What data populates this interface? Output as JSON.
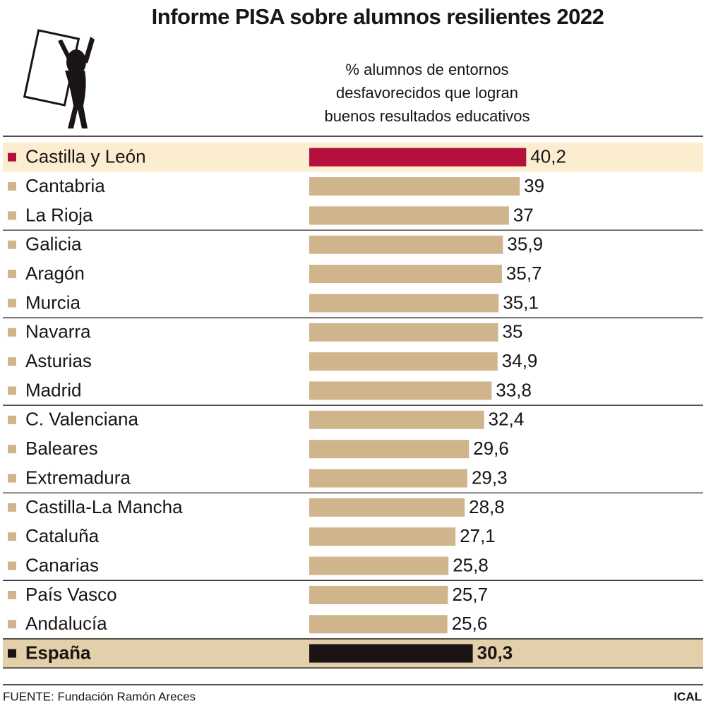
{
  "chart_data": {
    "type": "bar",
    "orientation": "horizontal",
    "title": "Informe PISA sobre alumnos resilientes 2022",
    "subtitle": [
      "% alumnos de entornos",
      "desfavorecidos que logran",
      "buenos resultados educativos"
    ],
    "categories": [
      "Castilla y León",
      "Cantabria",
      "La Rioja",
      "Galicia",
      "Aragón",
      "Murcia",
      "Navarra",
      "Asturias",
      "Madrid",
      "C. Valenciana",
      "Baleares",
      "Extremadura",
      "Castilla-La Mancha",
      "Cataluña",
      "Canarias",
      "País Vasco",
      "Andalucía",
      "España"
    ],
    "values": [
      40.2,
      39,
      37,
      35.9,
      35.7,
      35.1,
      35,
      34.9,
      33.8,
      32.4,
      29.6,
      29.3,
      28.8,
      27.1,
      25.8,
      25.7,
      25.6,
      30.3
    ],
    "value_labels": [
      "40,2",
      "39",
      "37",
      "35,9",
      "35,7",
      "35,1",
      "35",
      "34,9",
      "33,8",
      "32,4",
      "29,6",
      "29,3",
      "28,8",
      "27,1",
      "25,8",
      "25,7",
      "25,6",
      "30,3"
    ],
    "colors": [
      "#b5103c",
      "#cfb48c",
      "#cfb48c",
      "#cfb48c",
      "#cfb48c",
      "#cfb48c",
      "#cfb48c",
      "#cfb48c",
      "#cfb48c",
      "#cfb48c",
      "#cfb48c",
      "#cfb48c",
      "#cfb48c",
      "#cfb48c",
      "#cfb48c",
      "#cfb48c",
      "#cfb48c",
      "#1a1414"
    ],
    "xlim": [
      0,
      45
    ],
    "source": "FUENTE: Fundación Ramón Areces",
    "credit": "ICAL"
  }
}
